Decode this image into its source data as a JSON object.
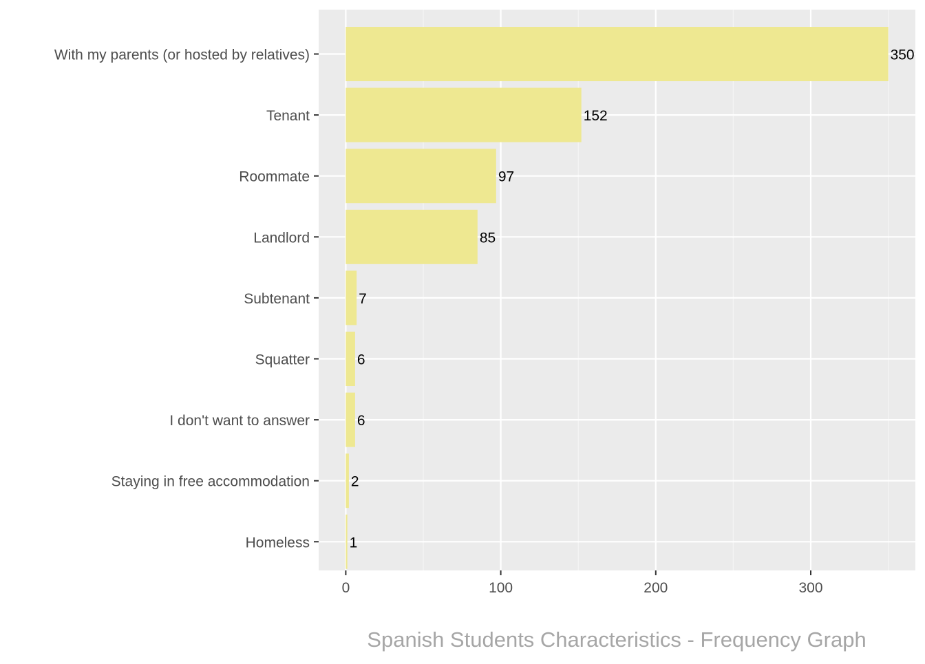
{
  "chart_data": {
    "type": "bar",
    "orientation": "horizontal",
    "categories": [
      "With my parents (or hosted by relatives)",
      "Tenant",
      "Roommate",
      "Landlord",
      "Subtenant",
      "Squatter",
      "I don't want to answer",
      "Staying in free accommodation",
      "Homeless"
    ],
    "values": [
      350,
      152,
      97,
      85,
      7,
      6,
      6,
      2,
      1
    ],
    "value_labels": [
      "350",
      "152",
      "97",
      "85",
      "7",
      "6",
      "6",
      "2",
      "1"
    ],
    "xticks": [
      0,
      100,
      200,
      300
    ],
    "xtick_labels": [
      "0",
      "100",
      "200",
      "300"
    ],
    "xlim": [
      -17.5,
      367.5
    ],
    "title": "",
    "caption": "Spanish Students Characteristics - Frequency Graph",
    "xlabel": "",
    "ylabel": "",
    "grid": true,
    "legend": "none",
    "colors": {
      "bar": "#EEE891",
      "panel": "#EBEBEB",
      "grid_major": "#FFFFFF",
      "grid_minor": "#F5F5F5",
      "axis_text": "#4D4D4D",
      "value_text": "#000000",
      "caption": "#A6A6A6",
      "tick": "#333333"
    }
  }
}
